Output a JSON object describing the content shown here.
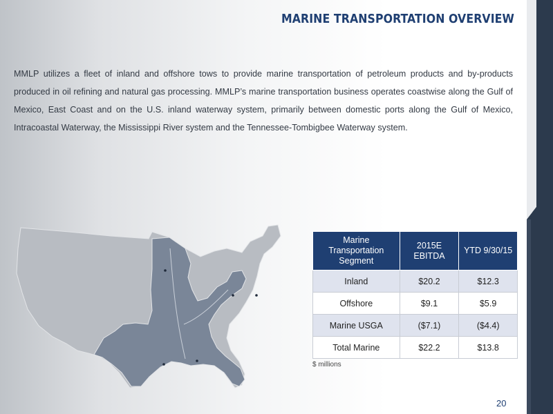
{
  "header": {
    "title": "MARINE TRANSPORTATION OVERVIEW"
  },
  "intro": "MMLP utilizes a fleet of inland and offshore tows to provide marine transportation of petroleum products and by-products produced in oil refining and natural gas processing. MMLP’s marine transportation business operates coastwise along the Gulf of Mexico, East Coast and on the U.S. inland waterway system, primarily between domestic ports along the Gulf of Mexico, Intracoastal Waterway, the Mississippi River system and the Tennessee-Tombigbee Waterway system.",
  "colors": {
    "brand_navy": "#1f3f72",
    "row_shade": "#dfe3ee",
    "map_highlight": "#7a8698",
    "map_base": "#b8bcc2"
  },
  "table": {
    "headers": [
      "Marine Transportation Segment",
      "2015E EBITDA",
      "YTD 9/30/15"
    ],
    "rows": [
      [
        "Inland",
        "$20.2",
        "$12.3"
      ],
      [
        "Offshore",
        "$9.1",
        "$5.9"
      ],
      [
        "Marine USGA",
        "($7.1)",
        "($4.4)"
      ],
      [
        "Total Marine",
        "$22.2",
        "$13.8"
      ]
    ],
    "note": "$ millions"
  },
  "footer": {
    "page_number": "20"
  }
}
